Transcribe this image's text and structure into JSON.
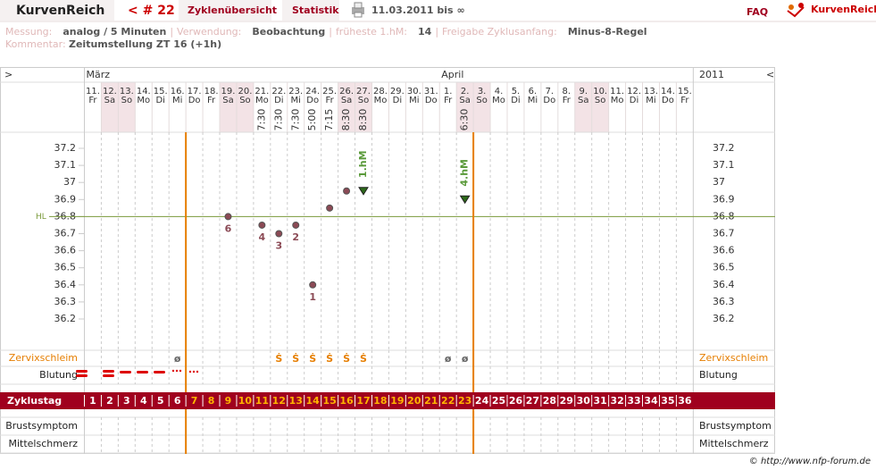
{
  "header": {
    "brand": "KurvenReich",
    "cycle": "< # 22",
    "tabs": [
      "Zyklenübersicht",
      "Statistik"
    ],
    "range": "11.03.2011 bis ∞",
    "faq": "FAQ",
    "logo": "KurvenReich"
  },
  "info": {
    "line1": [
      [
        "Messung:",
        "analog / 5 Minuten"
      ],
      [
        "Verwendung:",
        "Beobachtung"
      ],
      [
        "früheste 1.hM:",
        "14"
      ],
      [
        "Freigabe Zyklusanfang:",
        "Minus-8-Regel"
      ]
    ],
    "separator": "|",
    "comment_label": "Kommentar:",
    "comment": "Zeitumstellung ZT 16 (+1h)"
  },
  "chart": {
    "left_arrow": ">",
    "right_arrow": "<",
    "year": "2011",
    "months": [
      {
        "label": "März",
        "start": 0
      },
      {
        "label": "April",
        "start": 21
      }
    ],
    "days": [
      "11.",
      "12.",
      "13.",
      "14.",
      "15.",
      "16.",
      "17.",
      "18.",
      "19.",
      "20.",
      "21.",
      "22.",
      "23.",
      "24.",
      "25.",
      "26.",
      "27.",
      "28.",
      "29.",
      "30.",
      "31.",
      "1.",
      "2.",
      "3.",
      "4.",
      "5.",
      "6.",
      "7.",
      "8.",
      "9.",
      "10.",
      "11.",
      "12.",
      "13.",
      "14.",
      "15."
    ],
    "weekdays": [
      "Fr",
      "Sa",
      "So",
      "Mo",
      "Di",
      "Mi",
      "Do",
      "Fr",
      "Sa",
      "So",
      "Mo",
      "Di",
      "Mi",
      "Do",
      "Fr",
      "Sa",
      "So",
      "Mo",
      "Di",
      "Mi",
      "Do",
      "Fr",
      "Sa",
      "So",
      "Mo",
      "Di",
      "Mi",
      "Do",
      "Fr",
      "Sa",
      "So",
      "Mo",
      "Di",
      "Mi",
      "Do",
      "Fr"
    ],
    "times": [
      null,
      null,
      null,
      null,
      null,
      null,
      null,
      null,
      null,
      null,
      "7:30",
      "7:30",
      "7:30",
      "5:00",
      "7:15",
      "8:30",
      "8:30",
      null,
      null,
      null,
      null,
      null,
      "6:30",
      null,
      null,
      null,
      null,
      null,
      null,
      null,
      null,
      null,
      null,
      null,
      null,
      null
    ],
    "temps": [
      null,
      null,
      null,
      null,
      null,
      null,
      null,
      null,
      36.8,
      null,
      36.75,
      36.7,
      36.75,
      36.4,
      36.85,
      36.95,
      36.95,
      null,
      null,
      null,
      null,
      null,
      36.9,
      null,
      null,
      null,
      null,
      null,
      null,
      null,
      null,
      null,
      null,
      null,
      null,
      null
    ],
    "point_labels": [
      null,
      null,
      null,
      null,
      null,
      null,
      null,
      null,
      "6",
      null,
      "4",
      "3",
      "2",
      "1",
      null,
      null,
      null,
      null,
      null,
      null,
      null,
      null,
      null,
      null,
      null,
      null,
      null,
      null,
      null,
      null,
      null,
      null,
      null,
      null,
      null,
      null
    ],
    "hm_labels": [
      null,
      null,
      null,
      null,
      null,
      null,
      null,
      null,
      null,
      null,
      null,
      null,
      null,
      null,
      null,
      null,
      "1.hM",
      null,
      null,
      null,
      null,
      null,
      "4.hM",
      null,
      null,
      null,
      null,
      null,
      null,
      null,
      null,
      null,
      null,
      null,
      null,
      null
    ],
    "ylim": [
      36.1,
      37.3
    ],
    "yticks": [
      37.2,
      37.1,
      37,
      36.9,
      36.8,
      36.7,
      36.6,
      36.5,
      36.4,
      36.3,
      36.2
    ],
    "coverline": 36.8,
    "coverline_label": "HL",
    "mucus": [
      null,
      null,
      null,
      null,
      null,
      "ø",
      null,
      null,
      null,
      null,
      null,
      "Ṡ",
      "Ṡ",
      "Ṡ",
      "Ṡ",
      "Ṡ",
      "Ṡ",
      null,
      null,
      null,
      null,
      "ø",
      "ø",
      null,
      null,
      null,
      null,
      null,
      null,
      null,
      null,
      null,
      null,
      null,
      null,
      null
    ],
    "rows": {
      "mucus": "Zervixschleim",
      "bleeding": "Blutung",
      "cycle_day": "Zyklustag",
      "breast": "Brustsymptom",
      "pain": "Mittelschmerz"
    },
    "cycle_days": [
      1,
      2,
      3,
      4,
      5,
      6,
      7,
      8,
      9,
      10,
      11,
      12,
      13,
      14,
      15,
      16,
      17,
      18,
      19,
      20,
      21,
      22,
      23,
      24,
      25,
      26,
      27,
      28,
      29,
      30,
      31,
      32,
      33,
      34,
      35,
      36
    ],
    "markers_after_cycle_day": [
      6,
      23
    ]
  },
  "footer": "© http://www.nfp-forum.de"
}
